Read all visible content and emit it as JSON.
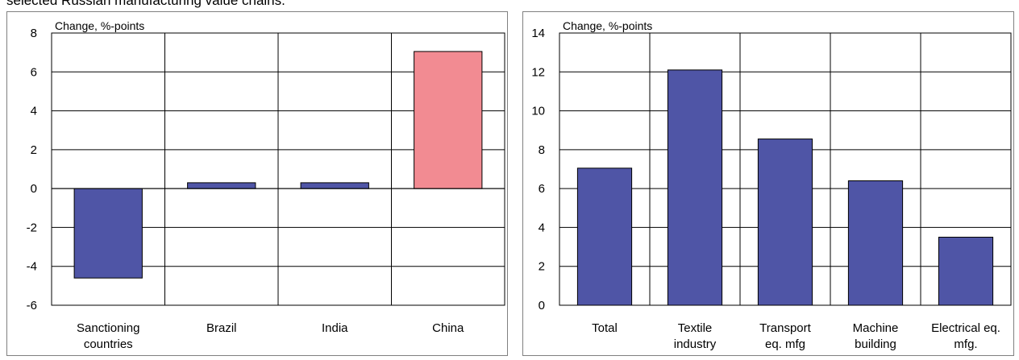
{
  "caption": "selected Russian manufacturing value chains.",
  "chart_data": [
    {
      "type": "bar",
      "title": "",
      "unit_label": "Change, %-points",
      "xlabel": "",
      "ylabel": "",
      "categories": [
        [
          "Sanctioning",
          "countries"
        ],
        [
          "Brazil"
        ],
        [
          "India"
        ],
        [
          "China"
        ]
      ],
      "values": [
        -4.6,
        0.3,
        0.3,
        7.05
      ],
      "colors": [
        "#4f55a6",
        "#4f55a6",
        "#4f55a6",
        "#f28b92"
      ],
      "ylim": [
        -6,
        8
      ],
      "yticks": [
        -6,
        -4,
        -2,
        0,
        2,
        4,
        6,
        8
      ],
      "grid": true
    },
    {
      "type": "bar",
      "title": "",
      "unit_label": "Change, %-points",
      "xlabel": "",
      "ylabel": "",
      "categories": [
        [
          "Total"
        ],
        [
          "Textile",
          "industry"
        ],
        [
          "Transport",
          "eq. mfg"
        ],
        [
          "Machine",
          "building"
        ],
        [
          "Electrical eq.",
          "mfg."
        ]
      ],
      "values": [
        7.05,
        12.1,
        8.55,
        6.4,
        3.5
      ],
      "colors": [
        "#4f55a6",
        "#4f55a6",
        "#4f55a6",
        "#4f55a6",
        "#4f55a6"
      ],
      "ylim": [
        0,
        14
      ],
      "yticks": [
        0,
        2,
        4,
        6,
        8,
        10,
        12,
        14
      ],
      "grid": true
    }
  ]
}
